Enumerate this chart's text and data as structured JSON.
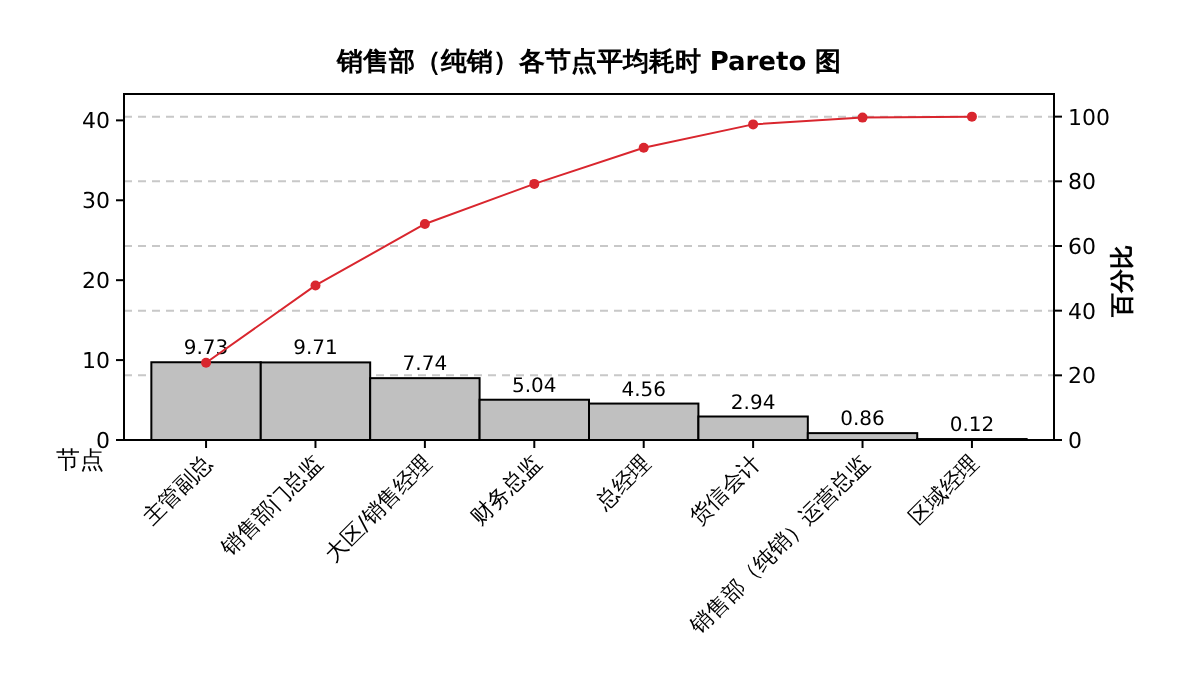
{
  "chart_data": {
    "type": "bar",
    "title": "销售部（纯销）各节点平均耗时 Pareto 图",
    "ylabel": "节点",
    "y2label": "百分比",
    "categories": [
      "主管副总",
      "销售部门总监",
      "大区/销售经理",
      "财务总监",
      "总经理",
      "货信会计",
      "销售部（纯销）运营总监",
      "区域经理"
    ],
    "series": [
      {
        "color": "#c0c0c0",
        "values": [
          9.73,
          9.71,
          7.74,
          5.04,
          4.56,
          2.94,
          0.86,
          0.12
        ],
        "value_labels": [
          "9.73",
          "9.71",
          "7.74",
          "5.04",
          "4.56",
          "2.94",
          "0.86",
          "0.12"
        ]
      },
      {
        "type": "line",
        "axis": "y2",
        "color": "#d9262e",
        "marker": "circle",
        "values": [
          23.9,
          47.8,
          66.8,
          79.2,
          90.4,
          97.6,
          99.7,
          100
        ]
      }
    ],
    "ylim": [
      0,
      43.3
    ],
    "yticks": [
      0,
      10,
      20,
      30,
      40
    ],
    "y2lim": [
      0,
      107
    ],
    "y2ticks": [
      0,
      20,
      40,
      60,
      80,
      100
    ],
    "grid": "y"
  }
}
